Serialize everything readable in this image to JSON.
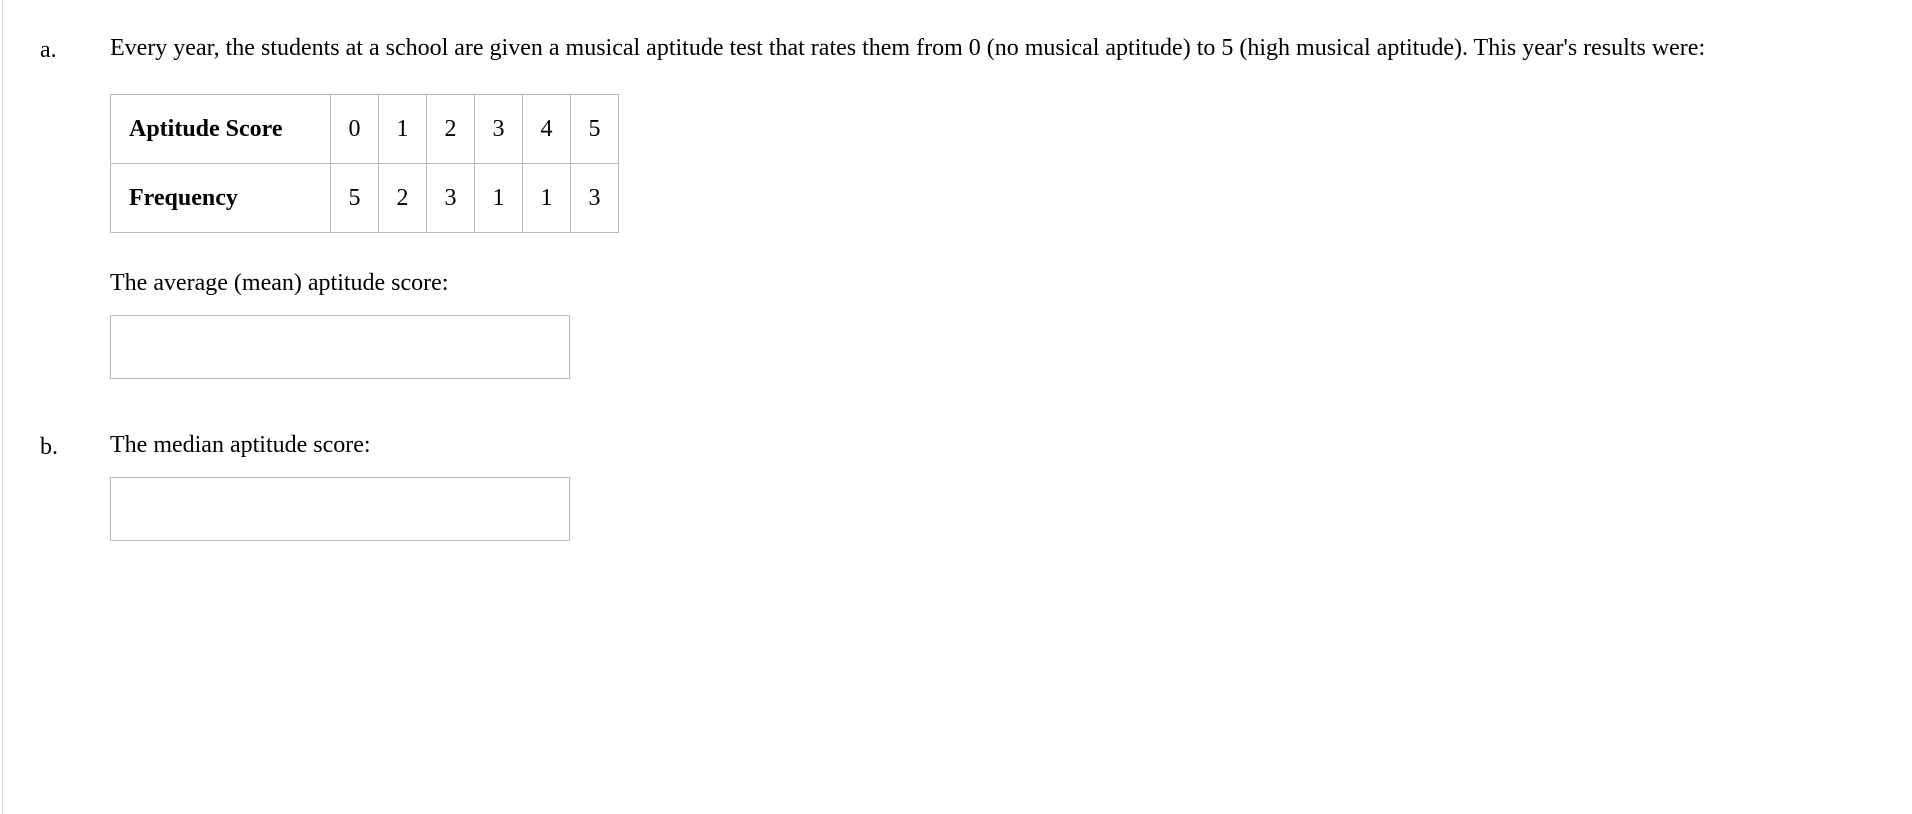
{
  "part_a": {
    "label": "a.",
    "text": "Every year, the students at a school are given a musical aptitude test that rates them from 0 (no musical aptitude) to 5 (high musical aptitude). This year's results were:",
    "table": {
      "type": "table",
      "columns_header_1": "Aptitude Score",
      "columns_header_2": "Frequency",
      "values_row_1": [
        "0",
        "1",
        "2",
        "3",
        "4",
        "5"
      ],
      "values_row_2": [
        "5",
        "2",
        "3",
        "1",
        "1",
        "3"
      ],
      "border_color": "#b8b8b8",
      "cell_padding": 16,
      "header_fontweight": "bold",
      "fontsize": 24,
      "text_color": "#000000",
      "background_color": "#ffffff"
    },
    "prompt": "The average (mean) aptitude score:",
    "answer_value": ""
  },
  "part_b": {
    "label": "b.",
    "prompt": "The median aptitude score:",
    "answer_value": ""
  },
  "style": {
    "font_family": "Georgia, Times New Roman, serif",
    "body_fontsize": 24,
    "text_color": "#000000",
    "background_color": "#ffffff",
    "input_border_color": "#b8b8b8",
    "input_width": 460,
    "input_height": 64
  }
}
